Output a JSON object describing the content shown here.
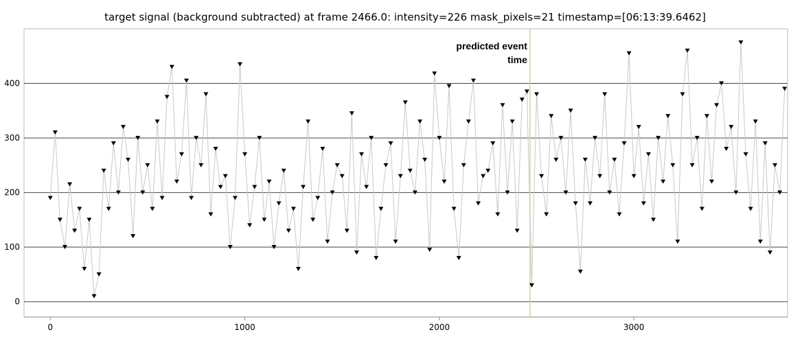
{
  "chart_data": {
    "type": "line",
    "title": "target signal (background subtracted) at frame 2466.0: intensity=226 mask_pixels=21 timestamp=[06:13:39.6462]",
    "x": [
      0,
      25,
      50,
      75,
      100,
      125,
      150,
      175,
      200,
      225,
      250,
      275,
      300,
      325,
      350,
      375,
      400,
      425,
      450,
      475,
      500,
      525,
      550,
      575,
      600,
      625,
      650,
      675,
      700,
      725,
      750,
      775,
      800,
      825,
      850,
      875,
      900,
      925,
      950,
      975,
      1000,
      1025,
      1050,
      1075,
      1100,
      1125,
      1150,
      1175,
      1200,
      1225,
      1250,
      1275,
      1300,
      1325,
      1350,
      1375,
      1400,
      1425,
      1450,
      1475,
      1500,
      1525,
      1550,
      1575,
      1600,
      1625,
      1650,
      1675,
      1700,
      1725,
      1750,
      1775,
      1800,
      1825,
      1850,
      1875,
      1900,
      1925,
      1950,
      1975,
      2000,
      2025,
      2050,
      2075,
      2100,
      2125,
      2150,
      2175,
      2200,
      2225,
      2250,
      2275,
      2300,
      2325,
      2350,
      2375,
      2400,
      2425,
      2450,
      2475,
      2500,
      2525,
      2550,
      2575,
      2600,
      2625,
      2650,
      2675,
      2700,
      2725,
      2750,
      2775,
      2800,
      2825,
      2850,
      2875,
      2900,
      2925,
      2950,
      2975,
      3000,
      3025,
      3050,
      3075,
      3100,
      3125,
      3150,
      3175,
      3200,
      3225,
      3250,
      3275,
      3300,
      3325,
      3350,
      3375,
      3400,
      3425,
      3450,
      3475,
      3500,
      3525,
      3550,
      3575,
      3600,
      3625,
      3650,
      3675,
      3700,
      3725,
      3750,
      3775
    ],
    "values": [
      190,
      310,
      150,
      100,
      215,
      130,
      170,
      60,
      150,
      10,
      50,
      240,
      170,
      290,
      200,
      320,
      260,
      120,
      300,
      200,
      250,
      170,
      330,
      190,
      375,
      430,
      220,
      270,
      405,
      190,
      300,
      250,
      380,
      160,
      280,
      210,
      230,
      100,
      190,
      435,
      270,
      140,
      210,
      300,
      150,
      220,
      100,
      180,
      240,
      130,
      170,
      60,
      210,
      330,
      150,
      190,
      280,
      110,
      200,
      250,
      230,
      130,
      345,
      90,
      270,
      210,
      300,
      80,
      170,
      250,
      290,
      110,
      230,
      365,
      240,
      200,
      330,
      260,
      95,
      418,
      300,
      220,
      395,
      170,
      80,
      250,
      330,
      405,
      180,
      230,
      240,
      290,
      160,
      360,
      200,
      330,
      130,
      370,
      385,
      30,
      380,
      230,
      160,
      340,
      260,
      300,
      200,
      350,
      180,
      55,
      260,
      180,
      300,
      230,
      380,
      200,
      260,
      160,
      290,
      455,
      230,
      320,
      180,
      270,
      150,
      300,
      220,
      340,
      250,
      110,
      380,
      460,
      250,
      300,
      170,
      340,
      220,
      360,
      400,
      280,
      320,
      200,
      475,
      270,
      170,
      330,
      110,
      290,
      90,
      250,
      200,
      390
    ],
    "color": "#000000",
    "line_color": "#c8c8c8",
    "xlim": [
      -135,
      3790
    ],
    "ylim": [
      -28,
      500
    ],
    "xticks": [
      0,
      1000,
      2000,
      3000
    ],
    "yticks": [
      0,
      100,
      200,
      300,
      400
    ],
    "grid": true,
    "event_x": 2466,
    "annotation": [
      "predicted event",
      "time"
    ]
  }
}
